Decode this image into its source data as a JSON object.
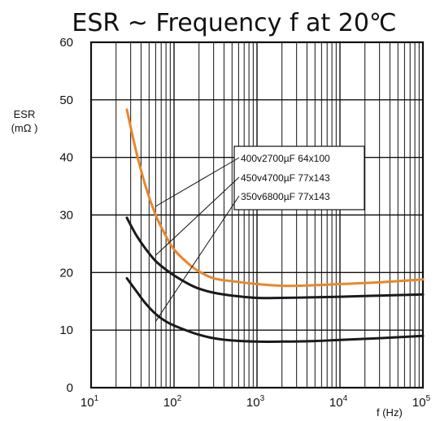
{
  "chart_data": {
    "type": "line",
    "title": "ESR ~ Frequency f  at 20℃",
    "ylabel_line1": "ESR",
    "ylabel_line2": "(mΩ )",
    "xlabel": "f (Hz)",
    "x_scale": "log",
    "xlim": [
      10,
      100000
    ],
    "ylim": [
      0,
      60
    ],
    "y_ticks": [
      "0",
      "10",
      "20",
      "30",
      "40",
      "50",
      "60"
    ],
    "x_ticks": [
      {
        "base": "10",
        "exp": "1"
      },
      {
        "base": "10",
        "exp": "2"
      },
      {
        "base": "10",
        "exp": "3"
      },
      {
        "base": "10",
        "exp": "4"
      },
      {
        "base": "10",
        "exp": "5"
      }
    ],
    "grid": true,
    "legend_box": {
      "placement": "center-right",
      "entries": [
        "400v2700µF 64x100",
        "450v4700µF 77x143",
        "350v6800µF 77x143"
      ]
    },
    "series": [
      {
        "name": "400v2700µF 64x100",
        "color": "#E8872C",
        "x": [
          27,
          35,
          45,
          60,
          80,
          100,
          150,
          200,
          300,
          500,
          1000,
          2000,
          3000,
          5000,
          10000,
          30000,
          100000
        ],
        "y": [
          48.3,
          41.0,
          35.2,
          30.0,
          26.3,
          24.0,
          21.5,
          20.2,
          19.0,
          18.5,
          18.0,
          17.7,
          17.7,
          17.8,
          18.0,
          18.3,
          18.8
        ]
      },
      {
        "name": "450v4700µF 77x143",
        "color": "#1A1A1A",
        "x": [
          27,
          35,
          45,
          60,
          80,
          100,
          150,
          200,
          300,
          500,
          1000,
          2000,
          5000,
          10000,
          30000,
          100000
        ],
        "y": [
          29.5,
          26.5,
          24.2,
          22.0,
          20.5,
          19.5,
          18.0,
          17.2,
          16.5,
          16.0,
          15.6,
          15.6,
          15.7,
          15.8,
          16.0,
          16.2
        ]
      },
      {
        "name": "350v6800µF 77x143",
        "color": "#1A1A1A",
        "x": [
          27,
          35,
          45,
          60,
          80,
          100,
          150,
          200,
          300,
          500,
          1000,
          2000,
          5000,
          10000,
          30000,
          100000
        ],
        "y": [
          19.0,
          16.8,
          14.7,
          12.8,
          11.5,
          10.8,
          9.8,
          9.2,
          8.6,
          8.2,
          8.0,
          8.0,
          8.1,
          8.3,
          8.6,
          9.0
        ]
      }
    ],
    "leader_targets": [
      {
        "x": 60,
        "y": 31.5
      },
      {
        "x": 60,
        "y": 23.0
      },
      {
        "x": 60,
        "y": 11.5
      }
    ]
  }
}
